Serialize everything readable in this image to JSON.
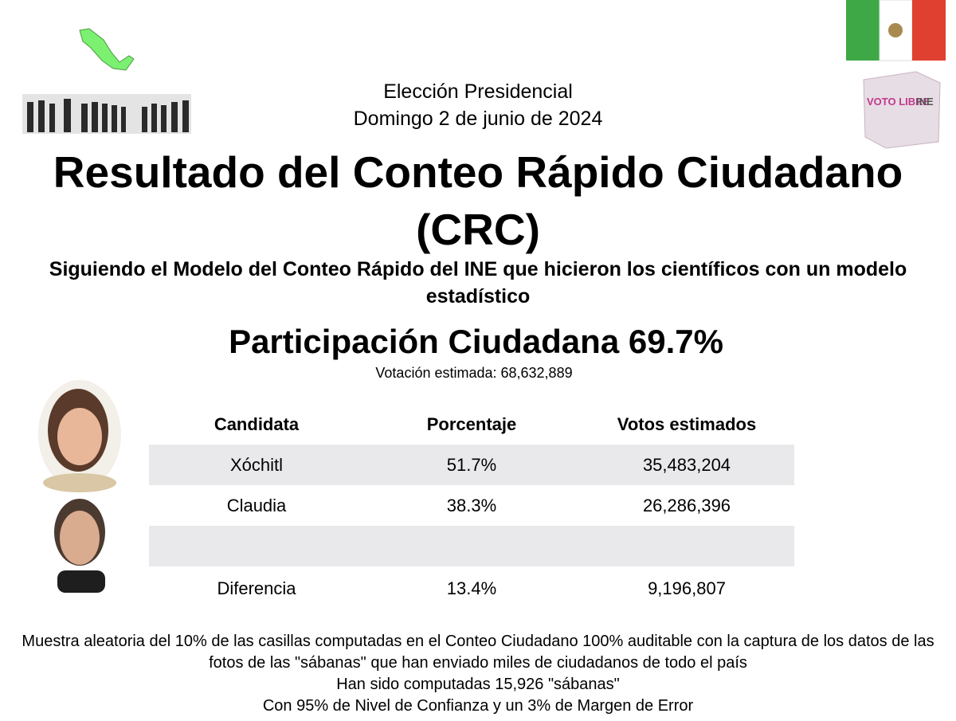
{
  "header": {
    "line1": "Elección Presidencial",
    "line2": "Domingo 2 de junio de 2024",
    "title": "Resultado del Conteo Rápido Ciudadano (CRC)",
    "subtitle": "Siguiendo el Modelo del Conteo Rápido del INE que hicieron los científicos con un modelo estadístico",
    "participation": "Participación Ciudadana 69.7%",
    "estimated_votes": "Votación estimada: 68,632,889"
  },
  "ballot_box": {
    "text": "VOTO LIBRE",
    "logo": "INE"
  },
  "table": {
    "columns": [
      "Candidata",
      "Porcentaje",
      "Votos estimados"
    ],
    "rows": [
      [
        "Xóchitl",
        "51.7%",
        "35,483,204"
      ],
      [
        "Claudia",
        "38.3%",
        "26,286,396"
      ]
    ],
    "difference": [
      "Diferencia",
      "13.4%",
      "9,196,807"
    ]
  },
  "footer": {
    "note": "Muestra aleatoria del 10% de las casillas computadas en el Conteo Ciudadano 100% auditable con la captura de los datos de las fotos de las \"sábanas\" que han enviado miles de ciudadanos de todo el país",
    "computed": "Han sido computadas 15,926 \"sábanas\"",
    "confidence": "Con 95% de Nivel de Confianza y un 3% de Margen de Error"
  }
}
